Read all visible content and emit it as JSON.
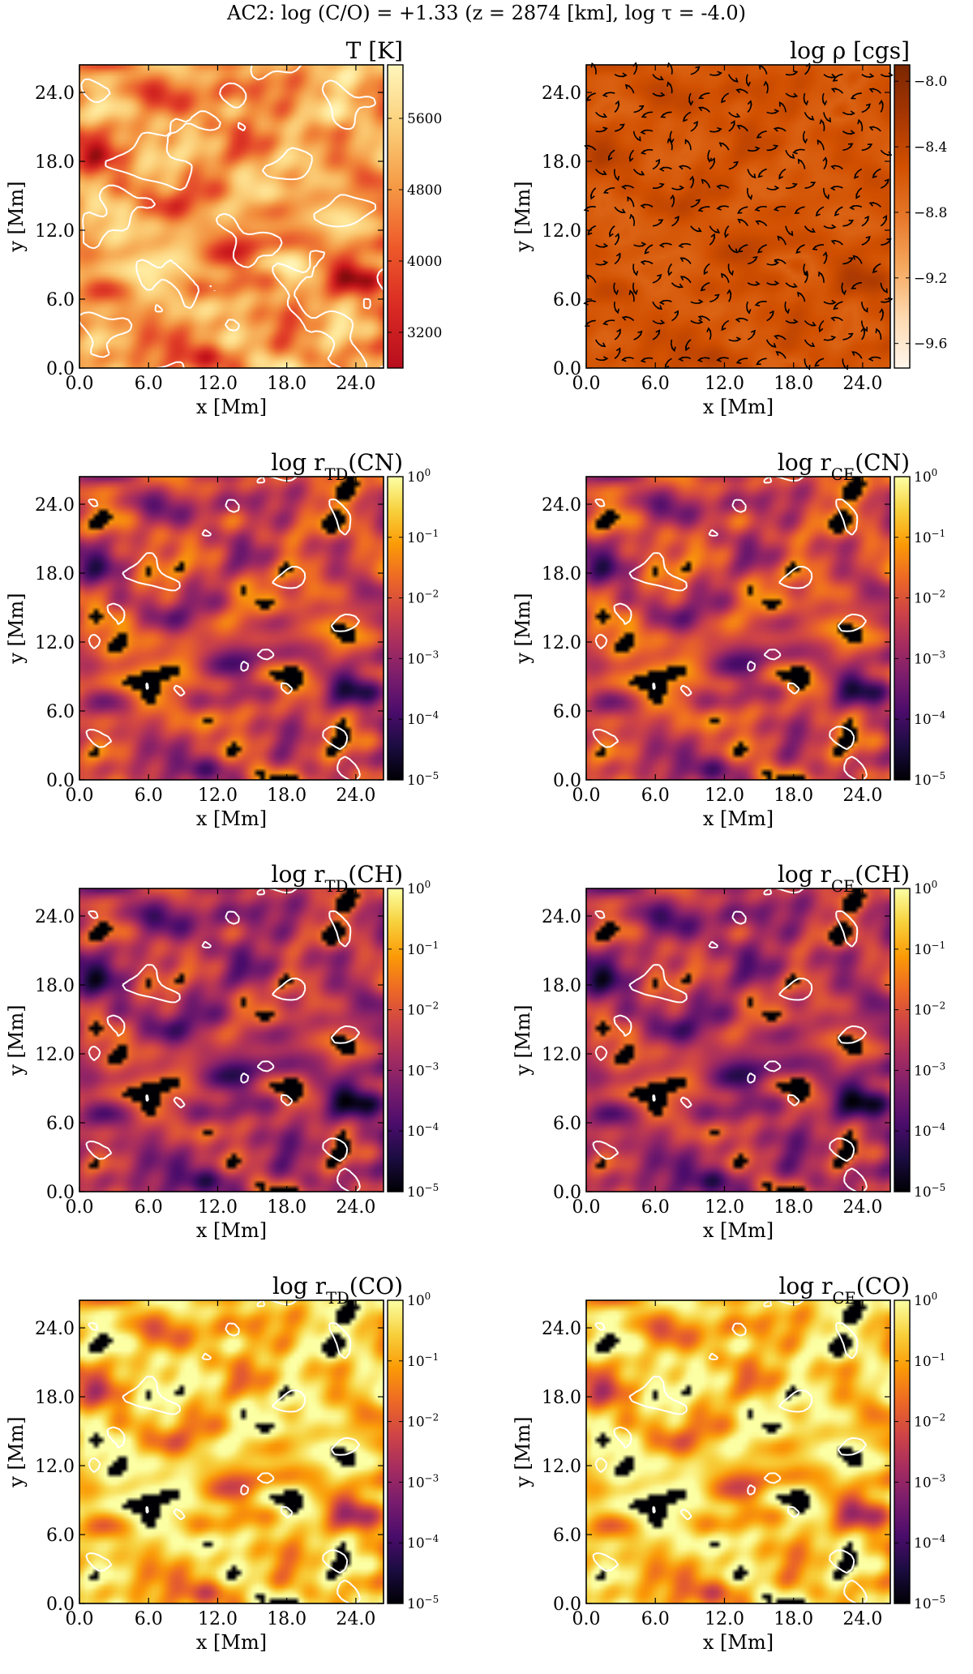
{
  "suptitle": "AC2: log (C/O) = +1.33 (z = 2874 [km], log τ = -4.0)",
  "colors": {
    "hot": [
      "#000000",
      "#6e0a08",
      "#c8141c",
      "#e4452a",
      "#f28a3a",
      "#fac26a",
      "#ffe89a",
      "#ffffd0"
    ],
    "oranges": [
      "#7a2600",
      "#a63603",
      "#d15000",
      "#e6772a",
      "#f5a85e",
      "#fdd9b0",
      "#fff5eb"
    ],
    "inferno": [
      "#000004",
      "#1b0c41",
      "#4a0c6b",
      "#781c6d",
      "#a52c60",
      "#cf4446",
      "#ed6925",
      "#fb9b06",
      "#f7d13d",
      "#fcffa4"
    ],
    "contour": "#ffffff",
    "vectors": "#000000"
  },
  "chart_data": [
    {
      "type": "heatmap",
      "id": "panel-temperature",
      "title": "T [K]",
      "xlabel": "x [Mm]",
      "ylabel": "y [Mm]",
      "xlim": [
        0,
        26.4
      ],
      "ylim": [
        0,
        26.4
      ],
      "xticks": [
        "0.0",
        "6.0",
        "12.0",
        "18.0",
        "24.0"
      ],
      "yticks": [
        "0.0",
        "6.0",
        "12.0",
        "18.0",
        "24.0"
      ],
      "colormap": "hot",
      "clim": [
        2800,
        6200
      ],
      "colorbar_ticks": [
        "3200",
        "4000",
        "4800",
        "5600"
      ],
      "colorbar_values": [
        3200,
        4000,
        4800,
        5600
      ],
      "contours": true,
      "vectors": false
    },
    {
      "type": "heatmap",
      "id": "panel-density",
      "title": "log ρ [cgs]",
      "xlabel": "x [Mm]",
      "ylabel": "y [Mm]",
      "xlim": [
        0,
        26.4
      ],
      "ylim": [
        0,
        26.4
      ],
      "xticks": [
        "0.0",
        "6.0",
        "12.0",
        "18.0",
        "24.0"
      ],
      "yticks": [
        "0.0",
        "6.0",
        "12.0",
        "18.0",
        "24.0"
      ],
      "colormap": "oranges",
      "clim": [
        -9.75,
        -7.9
      ],
      "colorbar_ticks": [
        "−8.0",
        "−8.4",
        "−8.8",
        "−9.2",
        "−9.6"
      ],
      "colorbar_values": [
        -8.0,
        -8.4,
        -8.8,
        -9.2,
        -9.6
      ],
      "contours": false,
      "vectors": true
    },
    {
      "type": "heatmap",
      "id": "panel-rtd-cn",
      "title": "log r_TD(CN)",
      "xlabel": "x [Mm]",
      "ylabel": "y [Mm]",
      "xlim": [
        0,
        26.4
      ],
      "ylim": [
        0,
        26.4
      ],
      "xticks": [
        "0.0",
        "6.0",
        "12.0",
        "18.0",
        "24.0"
      ],
      "yticks": [
        "0.0",
        "6.0",
        "12.0",
        "18.0",
        "24.0"
      ],
      "colormap": "inferno",
      "clim": [
        -5,
        0
      ],
      "colorbar_ticks": [
        "10^0",
        "10^−1",
        "10^−2",
        "10^−3",
        "10^−4",
        "10^−5"
      ],
      "colorbar_values": [
        0,
        -1,
        -2,
        -3,
        -4,
        -5
      ],
      "contours": true,
      "vectors": false
    },
    {
      "type": "heatmap",
      "id": "panel-rce-cn",
      "title": "log r_CE(CN)",
      "xlabel": "x [Mm]",
      "ylabel": "y [Mm]",
      "xlim": [
        0,
        26.4
      ],
      "ylim": [
        0,
        26.4
      ],
      "xticks": [
        "0.0",
        "6.0",
        "12.0",
        "18.0",
        "24.0"
      ],
      "yticks": [
        "0.0",
        "6.0",
        "12.0",
        "18.0",
        "24.0"
      ],
      "colormap": "inferno",
      "clim": [
        -5,
        0
      ],
      "colorbar_ticks": [
        "10^0",
        "10^−1",
        "10^−2",
        "10^−3",
        "10^−4",
        "10^−5"
      ],
      "colorbar_values": [
        0,
        -1,
        -2,
        -3,
        -4,
        -5
      ],
      "contours": true,
      "vectors": false
    },
    {
      "type": "heatmap",
      "id": "panel-rtd-ch",
      "title": "log r_TD(CH)",
      "xlabel": "x [Mm]",
      "ylabel": "y [Mm]",
      "xlim": [
        0,
        26.4
      ],
      "ylim": [
        0,
        26.4
      ],
      "xticks": [
        "0.0",
        "6.0",
        "12.0",
        "18.0",
        "24.0"
      ],
      "yticks": [
        "0.0",
        "6.0",
        "12.0",
        "18.0",
        "24.0"
      ],
      "colormap": "inferno",
      "clim": [
        -5,
        0
      ],
      "colorbar_ticks": [
        "10^0",
        "10^−1",
        "10^−2",
        "10^−3",
        "10^−4",
        "10^−5"
      ],
      "colorbar_values": [
        0,
        -1,
        -2,
        -3,
        -4,
        -5
      ],
      "contours": true,
      "vectors": false
    },
    {
      "type": "heatmap",
      "id": "panel-rce-ch",
      "title": "log r_CE(CH)",
      "xlabel": "x [Mm]",
      "ylabel": "y [Mm]",
      "xlim": [
        0,
        26.4
      ],
      "ylim": [
        0,
        26.4
      ],
      "xticks": [
        "0.0",
        "6.0",
        "12.0",
        "18.0",
        "24.0"
      ],
      "yticks": [
        "0.0",
        "6.0",
        "12.0",
        "18.0",
        "24.0"
      ],
      "colormap": "inferno",
      "clim": [
        -5,
        0
      ],
      "colorbar_ticks": [
        "10^0",
        "10^−1",
        "10^−2",
        "10^−3",
        "10^−4",
        "10^−5"
      ],
      "colorbar_values": [
        0,
        -1,
        -2,
        -3,
        -4,
        -5
      ],
      "contours": true,
      "vectors": false
    },
    {
      "type": "heatmap",
      "id": "panel-rtd-co",
      "title": "log r_TD(CO)",
      "xlabel": "x [Mm]",
      "ylabel": "y [Mm]",
      "xlim": [
        0,
        26.4
      ],
      "ylim": [
        0,
        26.4
      ],
      "xticks": [
        "0.0",
        "6.0",
        "12.0",
        "18.0",
        "24.0"
      ],
      "yticks": [
        "0.0",
        "6.0",
        "12.0",
        "18.0",
        "24.0"
      ],
      "colormap": "inferno",
      "clim": [
        -5,
        0
      ],
      "colorbar_ticks": [
        "10^0",
        "10^−1",
        "10^−2",
        "10^−3",
        "10^−4",
        "10^−5"
      ],
      "colorbar_values": [
        0,
        -1,
        -2,
        -3,
        -4,
        -5
      ],
      "contours": true,
      "vectors": false
    },
    {
      "type": "heatmap",
      "id": "panel-rce-co",
      "title": "log r_CE(CO)",
      "xlabel": "x [Mm]",
      "ylabel": "y [Mm]",
      "xlim": [
        0,
        26.4
      ],
      "ylim": [
        0,
        26.4
      ],
      "xticks": [
        "0.0",
        "6.0",
        "12.0",
        "18.0",
        "24.0"
      ],
      "yticks": [
        "0.0",
        "6.0",
        "12.0",
        "18.0",
        "24.0"
      ],
      "colormap": "inferno",
      "clim": [
        -5,
        0
      ],
      "colorbar_ticks": [
        "10^0",
        "10^−1",
        "10^−2",
        "10^−3",
        "10^−4",
        "10^−5"
      ],
      "colorbar_values": [
        0,
        -1,
        -2,
        -3,
        -4,
        -5
      ],
      "contours": true,
      "vectors": false
    }
  ]
}
